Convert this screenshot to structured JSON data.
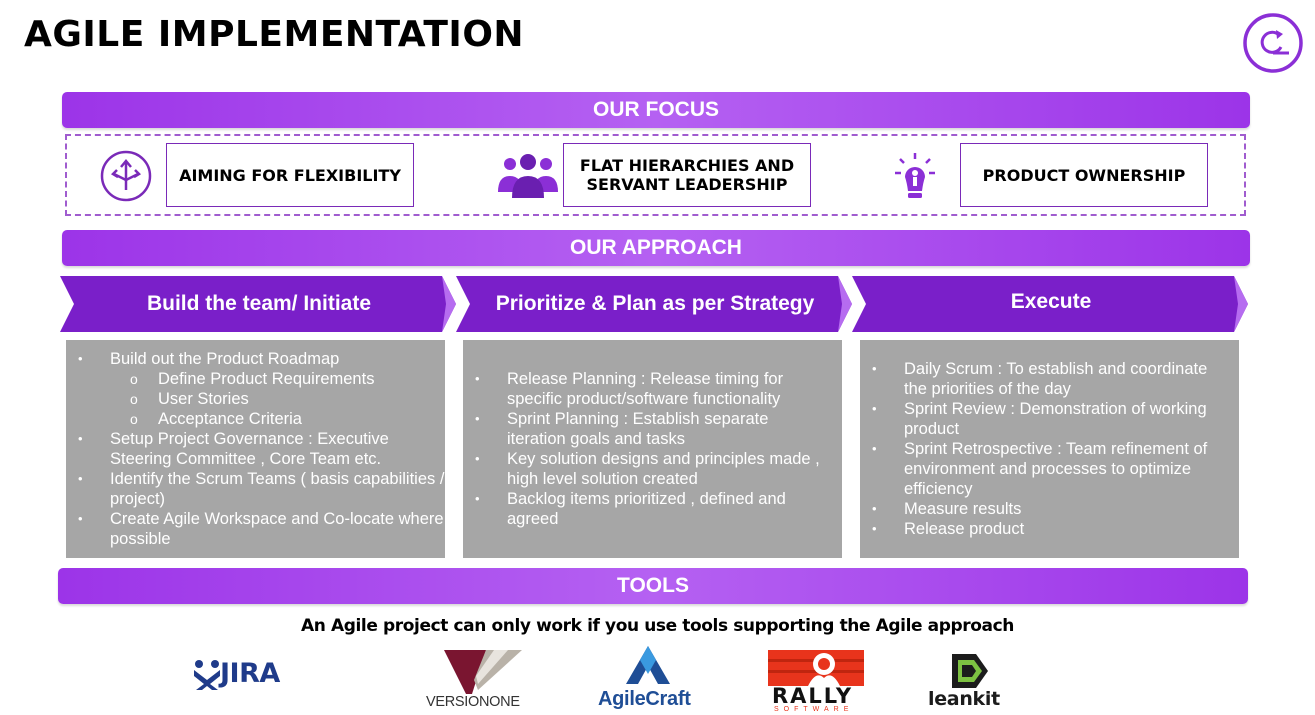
{
  "title": "AGILE IMPLEMENTATION",
  "focus": {
    "heading": "OUR FOCUS",
    "items": [
      {
        "label": "AIMING FOR FLEXIBILITY",
        "icon": "arrows-split-icon"
      },
      {
        "label": "FLAT HIERARCHIES AND SERVANT LEADERSHIP",
        "icon": "team-icon"
      },
      {
        "label": "PRODUCT OWNERSHIP",
        "icon": "lightbulb-person-icon"
      }
    ]
  },
  "approach": {
    "heading": "OUR APPROACH",
    "columns": [
      {
        "title": "Build the team/ Initiate",
        "bullets": [
          {
            "text": "Build out the Product Roadmap",
            "level": 1
          },
          {
            "text": "Define Product Requirements",
            "level": 2
          },
          {
            "text": "User Stories",
            "level": 2
          },
          {
            "text": "Acceptance Criteria",
            "level": 2
          },
          {
            "text": "Setup Project Governance : Executive Steering Committee , Core Team etc.",
            "level": 1
          },
          {
            "text": "Identify the Scrum Teams ( basis capabilities / project)",
            "level": 1
          },
          {
            "text": "Create Agile Workspace and Co-locate where possible",
            "level": 1
          }
        ]
      },
      {
        "title": "Prioritize & Plan as per Strategy",
        "bullets": [
          {
            "text": "Release Planning : Release timing for specific product/software functionality",
            "level": 1
          },
          {
            "text": "Sprint Planning : Establish separate iteration goals and tasks",
            "level": 1
          },
          {
            "text": "Key solution designs and principles made , high level solution created",
            "level": 1
          },
          {
            "text": "Backlog items prioritized , defined and agreed",
            "level": 1
          }
        ]
      },
      {
        "title": "Execute",
        "bullets": [
          {
            "text": "Daily Scrum : To establish and coordinate the priorities of the day",
            "level": 1
          },
          {
            "text": "Sprint Review : Demonstration of working product",
            "level": 1
          },
          {
            "text": "Sprint Retrospective : Team refinement of environment and processes to optimize efficiency",
            "level": 1
          },
          {
            "text": "Measure results",
            "level": 1
          },
          {
            "text": "Release product",
            "level": 1
          }
        ]
      }
    ]
  },
  "tools": {
    "heading": "TOOLS",
    "subtitle": "An Agile project can only work if you use tools supporting the Agile approach",
    "logos": [
      {
        "name": "JIRA",
        "text": "JIRA"
      },
      {
        "name": "VersionOne",
        "text": "VERSIONONE"
      },
      {
        "name": "AgileCraft",
        "text": "AgileCraft"
      },
      {
        "name": "Rally",
        "text": "RALLY",
        "sub": "SOFTWARE"
      },
      {
        "name": "LeanKit",
        "text": "leankit"
      }
    ]
  },
  "colors": {
    "accent": "#a046ec",
    "chevron": "#7a1fc9",
    "panel": "#a6a6a6",
    "border": "#7a2ab8"
  }
}
